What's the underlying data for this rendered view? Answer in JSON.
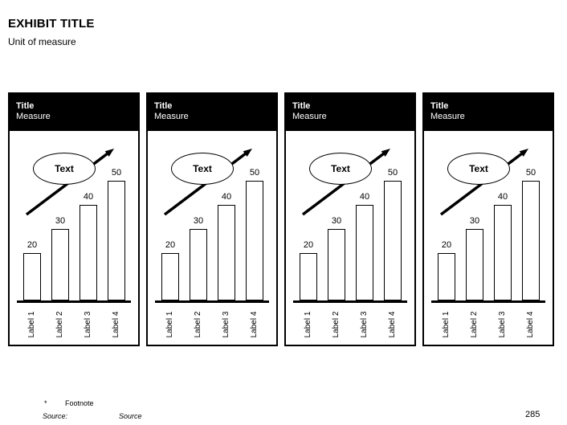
{
  "slide": {
    "title": "EXHIBIT TITLE",
    "subtitle": "Unit of measure",
    "footnote_marker": "*",
    "footnote": "Footnote",
    "source_label": "Source:",
    "source_value": "Source",
    "page_number": "285"
  },
  "colors": {
    "background": "#ffffff",
    "panel_header_bg": "#000000",
    "panel_header_text": "#ffffff",
    "ink": "#000000",
    "bar_fill": "#ffffff",
    "bar_border": "#000000"
  },
  "chart_data": [
    {
      "type": "bar",
      "title": "Title",
      "measure": "Measure",
      "callout": "Text",
      "categories": [
        "Label 1",
        "Label 2",
        "Label 3",
        "Label 4"
      ],
      "values": [
        20,
        30,
        40,
        50
      ],
      "value_labels": [
        "20",
        "30",
        "40",
        "50"
      ],
      "annotations": [
        "upward trend arrow through callout ellipse"
      ],
      "ylim": [
        0,
        55
      ],
      "grid": false,
      "legend": false
    },
    {
      "type": "bar",
      "title": "Title",
      "measure": "Measure",
      "callout": "Text",
      "categories": [
        "Label 1",
        "Label 2",
        "Label 3",
        "Label 4"
      ],
      "values": [
        20,
        30,
        40,
        50
      ],
      "value_labels": [
        "20",
        "30",
        "40",
        "50"
      ],
      "annotations": [
        "upward trend arrow through callout ellipse"
      ],
      "ylim": [
        0,
        55
      ],
      "grid": false,
      "legend": false
    },
    {
      "type": "bar",
      "title": "Title",
      "measure": "Measure",
      "callout": "Text",
      "categories": [
        "Label 1",
        "Label 2",
        "Label 3",
        "Label 4"
      ],
      "values": [
        20,
        30,
        40,
        50
      ],
      "value_labels": [
        "20",
        "30",
        "40",
        "50"
      ],
      "annotations": [
        "upward trend arrow through callout ellipse"
      ],
      "ylim": [
        0,
        55
      ],
      "grid": false,
      "legend": false
    },
    {
      "type": "bar",
      "title": "Title",
      "measure": "Measure",
      "callout": "Text",
      "categories": [
        "Label 1",
        "Label 2",
        "Label 3",
        "Label 4"
      ],
      "values": [
        20,
        30,
        40,
        50
      ],
      "value_labels": [
        "20",
        "30",
        "40",
        "50"
      ],
      "annotations": [
        "upward trend arrow through callout ellipse"
      ],
      "ylim": [
        0,
        55
      ],
      "grid": false,
      "legend": false
    }
  ]
}
